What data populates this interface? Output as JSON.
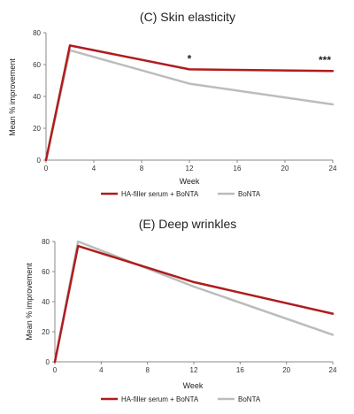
{
  "chart_data": [
    {
      "type": "line",
      "title": "(C) Skin elasticity",
      "xlabel": "Week",
      "ylabel": "Mean % improvement",
      "x": [
        0,
        2,
        12,
        24
      ],
      "xticks": [
        "0",
        "4",
        "8",
        "12",
        "16",
        "20",
        "24"
      ],
      "yticks": [
        "0",
        "20",
        "40",
        "60",
        "80"
      ],
      "xlim": [
        0,
        24
      ],
      "ylim": [
        0,
        80
      ],
      "grid": false,
      "legend_position": "bottom",
      "annotations": [
        {
          "text": "*",
          "x": 12
        },
        {
          "text": "***",
          "x": 24
        }
      ],
      "series": [
        {
          "name": "HA-filler serum + BoNTA",
          "color": "#b01c1c",
          "values": [
            0,
            72,
            57,
            56
          ]
        },
        {
          "name": "BoNTA",
          "color": "#bcbcbc",
          "values": [
            0,
            69,
            48,
            35
          ]
        }
      ]
    },
    {
      "type": "line",
      "title": "(E) Deep wrinkles",
      "xlabel": "Week",
      "ylabel": "Mean % improvement",
      "x": [
        0,
        2,
        12,
        24
      ],
      "xticks": [
        "0",
        "4",
        "8",
        "12",
        "16",
        "20",
        "24"
      ],
      "yticks": [
        "0",
        "20",
        "40",
        "60",
        "80"
      ],
      "xlim": [
        0,
        24
      ],
      "ylim": [
        0,
        80
      ],
      "grid": false,
      "legend_position": "bottom",
      "annotations": [],
      "series": [
        {
          "name": "HA-filler serum + BoNTA",
          "color": "#b01c1c",
          "values": [
            0,
            77,
            53,
            32
          ]
        },
        {
          "name": "BoNTA",
          "color": "#bcbcbc",
          "values": [
            0,
            80,
            50,
            18
          ]
        }
      ]
    }
  ]
}
